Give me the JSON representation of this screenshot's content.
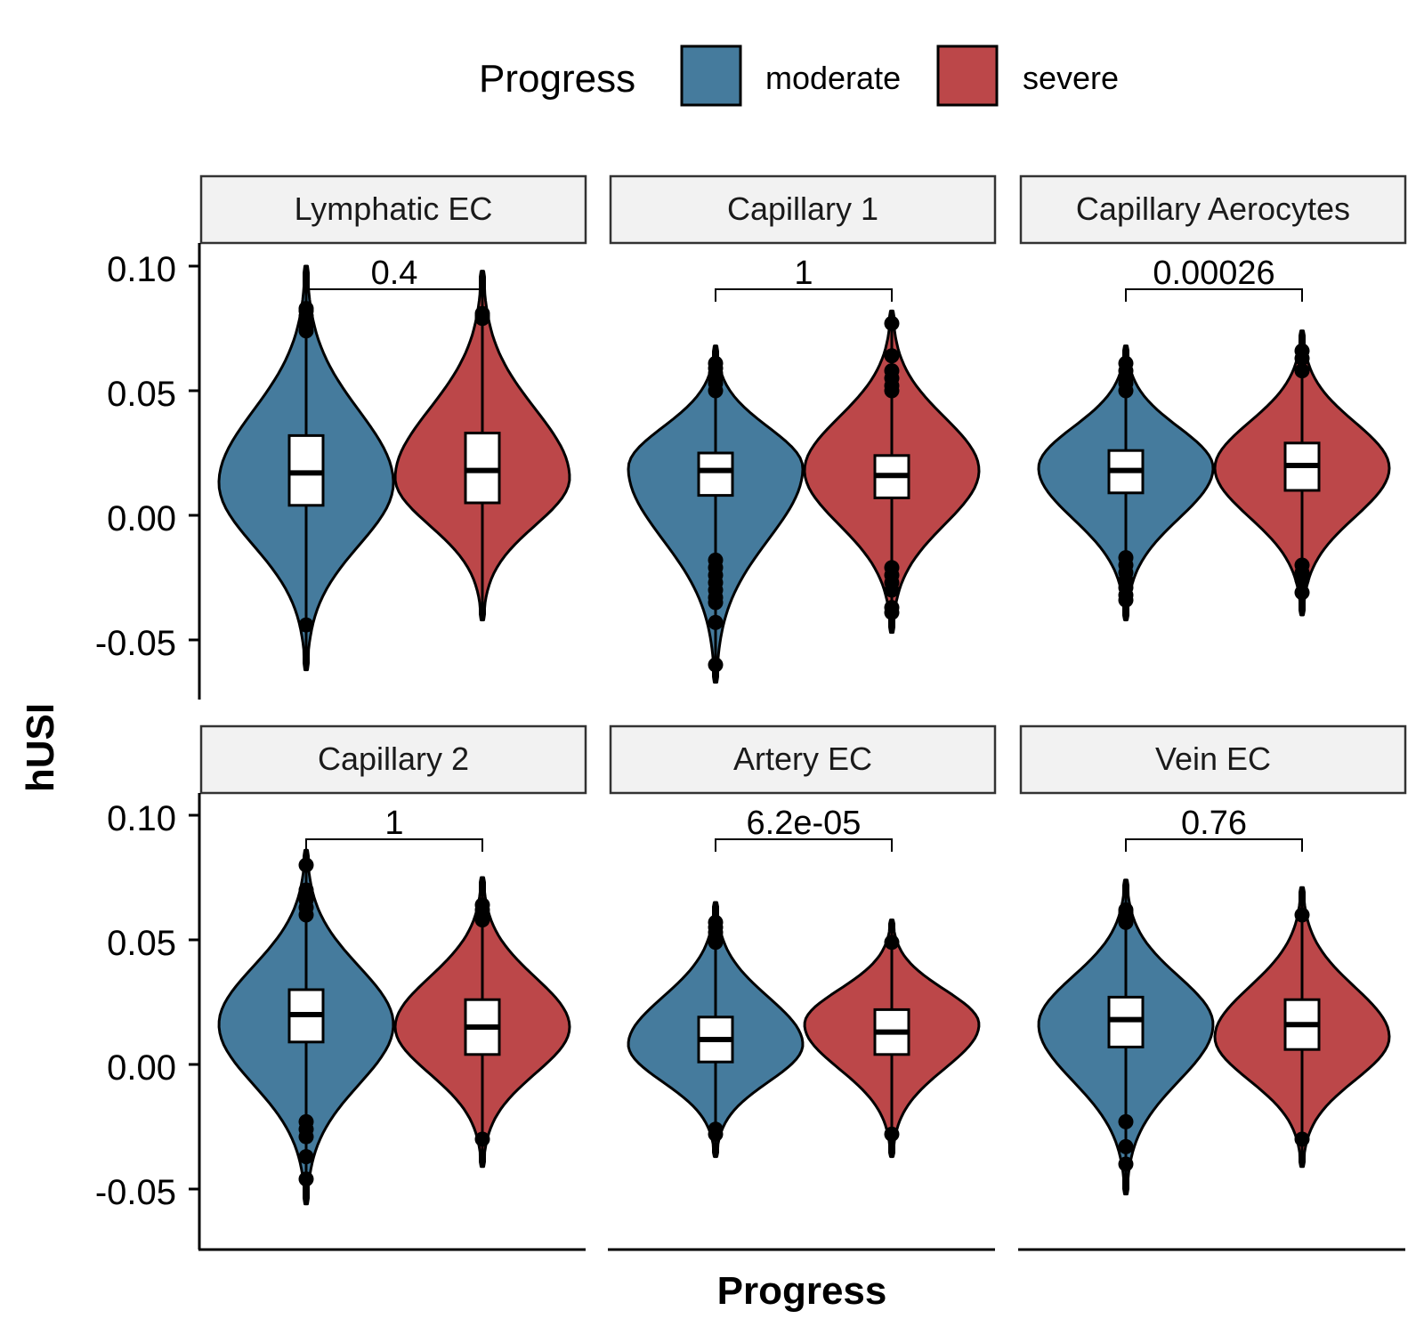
{
  "legend": {
    "title": "Progress",
    "items": [
      {
        "label": "moderate",
        "color": "#457B9D"
      },
      {
        "label": "severe",
        "color": "#BC4749"
      }
    ]
  },
  "axes": {
    "ylabel": "hUSI",
    "xlabel": "Progress",
    "yticks": [
      "0.10",
      "0.05",
      "0.00",
      "-0.05"
    ]
  },
  "chart_data": {
    "type": "violin",
    "xlabel": "Progress",
    "ylabel": "hUSI",
    "ylim": [
      -0.075,
      0.108
    ],
    "yticks": [
      0.1,
      0.05,
      0.0,
      -0.05
    ],
    "groups": [
      "moderate",
      "severe"
    ],
    "colors": {
      "moderate": "#457B9D",
      "severe": "#BC4749"
    },
    "legend_position": "top",
    "panels": [
      {
        "title": "Lymphatic EC",
        "pvalue": "0.4",
        "violins": [
          {
            "group": "moderate",
            "min": -0.062,
            "max": 0.1,
            "q1": 0.004,
            "median": 0.017,
            "q3": 0.032,
            "peak": 0.013,
            "outliers": [
              0.074,
              0.076,
              0.078,
              0.08,
              0.082,
              0.083,
              -0.044
            ]
          },
          {
            "group": "severe",
            "min": -0.042,
            "max": 0.098,
            "q1": 0.005,
            "median": 0.018,
            "q3": 0.033,
            "peak": 0.015,
            "outliers": [
              0.079,
              0.08,
              0.081
            ]
          }
        ]
      },
      {
        "title": "Capillary 1",
        "pvalue": "1",
        "violins": [
          {
            "group": "moderate",
            "min": -0.067,
            "max": 0.068,
            "q1": 0.008,
            "median": 0.018,
            "q3": 0.025,
            "peak": 0.019,
            "outliers": [
              0.05,
              0.053,
              0.055,
              0.057,
              0.059,
              0.061,
              -0.018,
              -0.021,
              -0.024,
              -0.027,
              -0.03,
              -0.033,
              -0.035,
              -0.043,
              -0.06
            ]
          },
          {
            "group": "severe",
            "min": -0.047,
            "max": 0.082,
            "q1": 0.007,
            "median": 0.016,
            "q3": 0.024,
            "peak": 0.018,
            "outliers": [
              0.05,
              0.052,
              0.055,
              0.058,
              0.064,
              0.077,
              -0.021,
              -0.024,
              -0.027,
              -0.03,
              -0.037,
              -0.039
            ]
          }
        ]
      },
      {
        "title": "Capillary Aerocytes",
        "pvalue": "0.00026",
        "violins": [
          {
            "group": "moderate",
            "min": -0.042,
            "max": 0.068,
            "q1": 0.009,
            "median": 0.018,
            "q3": 0.026,
            "peak": 0.019,
            "outliers": [
              0.05,
              0.053,
              0.055,
              0.058,
              0.061,
              -0.017,
              -0.02,
              -0.023,
              -0.026,
              -0.029,
              -0.032,
              -0.034
            ]
          },
          {
            "group": "severe",
            "min": -0.04,
            "max": 0.074,
            "q1": 0.01,
            "median": 0.02,
            "q3": 0.029,
            "peak": 0.019,
            "outliers": [
              0.058,
              0.063,
              0.066,
              -0.02,
              -0.023,
              -0.026,
              -0.031
            ]
          }
        ]
      },
      {
        "title": "Capillary 2",
        "pvalue": "1",
        "violins": [
          {
            "group": "moderate",
            "min": -0.056,
            "max": 0.086,
            "q1": 0.009,
            "median": 0.02,
            "q3": 0.03,
            "peak": 0.016,
            "outliers": [
              0.06,
              0.063,
              0.066,
              0.068,
              0.07,
              0.08,
              -0.023,
              -0.026,
              -0.029,
              -0.037,
              -0.046
            ]
          },
          {
            "group": "severe",
            "min": -0.041,
            "max": 0.075,
            "q1": 0.004,
            "median": 0.015,
            "q3": 0.026,
            "peak": 0.015,
            "outliers": [
              0.058,
              0.06,
              0.062,
              0.064,
              -0.03
            ]
          }
        ]
      },
      {
        "title": "Artery EC",
        "pvalue": "6.2e-05",
        "violins": [
          {
            "group": "moderate",
            "min": -0.037,
            "max": 0.065,
            "q1": 0.001,
            "median": 0.01,
            "q3": 0.019,
            "peak": 0.008,
            "outliers": [
              0.049,
              0.051,
              0.053,
              0.055,
              0.057,
              -0.026,
              -0.028
            ]
          },
          {
            "group": "severe",
            "min": -0.037,
            "max": 0.058,
            "q1": 0.004,
            "median": 0.013,
            "q3": 0.022,
            "peak": 0.016,
            "outliers": [
              0.049,
              -0.028
            ]
          }
        ]
      },
      {
        "title": "Vein EC",
        "pvalue": "0.76",
        "violins": [
          {
            "group": "moderate",
            "min": -0.052,
            "max": 0.074,
            "q1": 0.007,
            "median": 0.018,
            "q3": 0.027,
            "peak": 0.016,
            "outliers": [
              0.057,
              0.059,
              0.061,
              0.062,
              -0.023,
              -0.033,
              -0.04
            ]
          },
          {
            "group": "severe",
            "min": -0.041,
            "max": 0.071,
            "q1": 0.006,
            "median": 0.016,
            "q3": 0.026,
            "peak": 0.011,
            "outliers": [
              0.06,
              -0.03
            ]
          }
        ]
      }
    ]
  }
}
